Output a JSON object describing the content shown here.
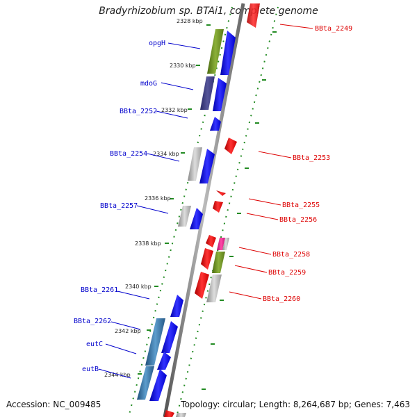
{
  "title": "Bradyrhizobium sp. BTAi1, complete genome",
  "footer": {
    "accession": "Accession: NC_009485",
    "topology": "Topology: circular; Length: 8,264,687 bp; Genes: 7,463"
  },
  "colors": {
    "forward": "#0000ee",
    "reverse": "#ee0000",
    "backbone": "#888888",
    "ruler_dots": "#228B22",
    "label_left": "#0000cc",
    "label_right": "#dd0000"
  },
  "ticks": [
    "2328 kbp",
    "2330 kbp",
    "2332 kbp",
    "2334 kbp",
    "2336 kbp",
    "2338 kbp",
    "2340 kbp",
    "2342 kbp",
    "2344 kbp"
  ],
  "left_labels": [
    "opgH",
    "mdoG",
    "BBta_2252",
    "BBta_2254",
    "BBta_2257",
    "BBta_2261",
    "BBta_2262",
    "eutC",
    "eutB"
  ],
  "right_labels": [
    "BBta_2249",
    "BBta_2253",
    "BBta_2255",
    "BBta_2256",
    "BBta_2258",
    "BBta_2259",
    "BBta_2260"
  ]
}
